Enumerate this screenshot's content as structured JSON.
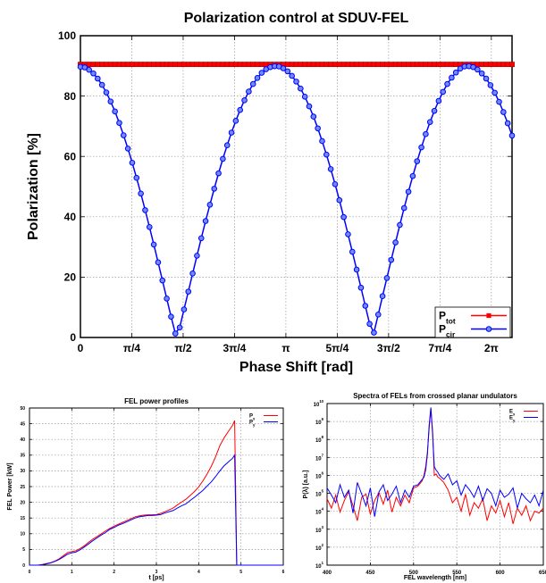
{
  "chart_data": [
    {
      "type": "line",
      "title": "Polarization control at SDUV-FEL",
      "xlabel": "Phase Shift [rad]",
      "ylabel": "Polarization [%]",
      "xlim": [
        0,
        6.6
      ],
      "ylim": [
        0,
        100
      ],
      "grid": true,
      "legend_position": "bottom-right",
      "x_ticks": [
        {
          "value": 0,
          "label": "0"
        },
        {
          "value": 0.7854,
          "label": "π/4"
        },
        {
          "value": 1.5708,
          "label": "π/2"
        },
        {
          "value": 2.3562,
          "label": "3π/4"
        },
        {
          "value": 3.1416,
          "label": "π"
        },
        {
          "value": 3.927,
          "label": "5π/4"
        },
        {
          "value": 4.7124,
          "label": "3π/2"
        },
        {
          "value": 5.4978,
          "label": "7π/4"
        },
        {
          "value": 6.2832,
          "label": "2π"
        }
      ],
      "y_ticks": [
        0,
        20,
        40,
        60,
        80,
        100
      ],
      "x": [
        0.0,
        0.066,
        0.132,
        0.198,
        0.264,
        0.33,
        0.396,
        0.462,
        0.528,
        0.594,
        0.66,
        0.726,
        0.792,
        0.858,
        0.924,
        0.99,
        1.056,
        1.122,
        1.188,
        1.254,
        1.32,
        1.386,
        1.452,
        1.518,
        1.584,
        1.65,
        1.716,
        1.782,
        1.848,
        1.914,
        1.98,
        2.046,
        2.112,
        2.178,
        2.244,
        2.31,
        2.376,
        2.442,
        2.508,
        2.574,
        2.64,
        2.706,
        2.772,
        2.838,
        2.904,
        2.97,
        3.036,
        3.102,
        3.168,
        3.234,
        3.3,
        3.366,
        3.432,
        3.498,
        3.564,
        3.63,
        3.696,
        3.762,
        3.828,
        3.894,
        3.96,
        4.026,
        4.092,
        4.158,
        4.224,
        4.29,
        4.356,
        4.422,
        4.488,
        4.554,
        4.62,
        4.686,
        4.752,
        4.818,
        4.884,
        4.95,
        5.016,
        5.082,
        5.148,
        5.214,
        5.28,
        5.346,
        5.412,
        5.478,
        5.544,
        5.61,
        5.676,
        5.742,
        5.808,
        5.874,
        5.94,
        6.006,
        6.072,
        6.138,
        6.204,
        6.27,
        6.336,
        6.402,
        6.468,
        6.534,
        6.6
      ],
      "series": [
        {
          "name": "P_tot",
          "color": "#ff0000",
          "marker": "square",
          "values": [
            90.5,
            90.5,
            90.5,
            90.5,
            90.5,
            90.5,
            90.5,
            90.5,
            90.5,
            90.5,
            90.5,
            90.5,
            90.5,
            90.5,
            90.5,
            90.5,
            90.5,
            90.5,
            90.5,
            90.5,
            90.5,
            90.5,
            90.5,
            90.5,
            90.5,
            90.5,
            90.5,
            90.5,
            90.5,
            90.5,
            90.5,
            90.5,
            90.5,
            90.5,
            90.5,
            90.5,
            90.5,
            90.5,
            90.5,
            90.5,
            90.5,
            90.5,
            90.5,
            90.5,
            90.5,
            90.5,
            90.5,
            90.5,
            90.5,
            90.5,
            90.5,
            90.5,
            90.5,
            90.5,
            90.5,
            90.5,
            90.5,
            90.5,
            90.5,
            90.5,
            90.5,
            90.5,
            90.5,
            90.5,
            90.5,
            90.5,
            90.5,
            90.5,
            90.5,
            90.5,
            90.5,
            90.5,
            90.5,
            90.5,
            90.5,
            90.5,
            90.5,
            90.5,
            90.5,
            90.5,
            90.5,
            90.5,
            90.5,
            90.5,
            90.5,
            90.5,
            90.5,
            90.5,
            90.5,
            90.5,
            90.5,
            90.5,
            90.5,
            90.5,
            90.5,
            90.5,
            90.5,
            90.5,
            90.5,
            90.5,
            90.5
          ]
        },
        {
          "name": "P_cir",
          "color": "#0000ff",
          "marker": "circle",
          "values": [
            89.7,
            89.5,
            88.7,
            87.5,
            85.8,
            83.7,
            81.2,
            78.2,
            74.9,
            71.1,
            67.0,
            62.6,
            57.9,
            52.9,
            47.7,
            42.2,
            36.6,
            30.8,
            24.9,
            18.9,
            12.9,
            6.9,
            1.3,
            3.3,
            9.3,
            15.2,
            21.2,
            27.1,
            32.9,
            38.6,
            44.0,
            49.3,
            54.4,
            59.2,
            63.7,
            67.9,
            71.8,
            75.4,
            78.6,
            81.5,
            84.0,
            86.0,
            87.7,
            88.9,
            89.6,
            89.9,
            89.8,
            89.2,
            88.2,
            86.7,
            84.8,
            82.5,
            79.8,
            76.6,
            73.2,
            69.3,
            65.1,
            60.6,
            55.8,
            50.8,
            45.5,
            39.9,
            34.2,
            28.4,
            22.5,
            16.5,
            10.5,
            4.5,
            1.6,
            7.6,
            13.7,
            19.7,
            25.7,
            31.5,
            37.3,
            42.9,
            48.3,
            53.5,
            58.4,
            63.0,
            67.4,
            71.4,
            75.1,
            78.4,
            81.4,
            84.0,
            86.1,
            87.8,
            89.1,
            89.8,
            89.9,
            89.6,
            88.8,
            87.5,
            85.8,
            83.6,
            81.1,
            78.1,
            74.7,
            71.0,
            66.9
          ]
        }
      ]
    },
    {
      "type": "line",
      "title": "FEL power profiles",
      "xlabel": "t [ps]",
      "ylabel": "FEL Power [kW]",
      "xlim": [
        0,
        6
      ],
      "ylim": [
        0,
        50
      ],
      "grid": true,
      "legend_position": "top-right",
      "x_ticks": [
        0,
        1,
        2,
        3,
        4,
        5,
        6
      ],
      "y_ticks": [
        0,
        5,
        10,
        15,
        20,
        25,
        30,
        35,
        40,
        45,
        50
      ],
      "x": [
        0.0,
        0.1,
        0.2,
        0.3,
        0.4,
        0.5,
        0.6,
        0.7,
        0.8,
        0.9,
        1.0,
        1.1,
        1.2,
        1.3,
        1.4,
        1.5,
        1.6,
        1.7,
        1.8,
        1.9,
        2.0,
        2.1,
        2.2,
        2.3,
        2.4,
        2.5,
        2.6,
        2.7,
        2.8,
        2.9,
        3.0,
        3.1,
        3.2,
        3.3,
        3.4,
        3.5,
        3.6,
        3.7,
        3.8,
        3.9,
        4.0,
        4.1,
        4.2,
        4.3,
        4.4,
        4.5,
        4.6,
        4.7,
        4.8,
        4.85,
        4.9,
        5.0,
        5.1,
        5.2,
        5.3,
        5.4,
        5.5,
        5.6,
        5.7,
        5.8,
        5.9,
        6.0
      ],
      "series": [
        {
          "name": "P_x",
          "color": "#ff0000",
          "values": [
            0,
            0,
            0,
            0.2,
            0.5,
            0.8,
            1.3,
            2.0,
            3.0,
            4.0,
            4.3,
            4.6,
            5.3,
            6.2,
            7.3,
            8.3,
            9.1,
            10.0,
            10.9,
            11.7,
            12.4,
            13.0,
            13.6,
            14.2,
            14.8,
            15.4,
            15.7,
            15.9,
            16.0,
            16.0,
            16.1,
            16.5,
            17.0,
            17.6,
            18.2,
            19.2,
            20.1,
            21.0,
            22.2,
            23.4,
            24.9,
            26.8,
            29.0,
            31.5,
            34.5,
            38.0,
            40.5,
            42.5,
            44.5,
            46.0,
            0,
            0,
            0,
            0,
            0,
            0,
            0,
            0,
            0,
            0,
            0,
            0
          ]
        },
        {
          "name": "P_y",
          "color": "#0000ff",
          "values": [
            0,
            0,
            0,
            0.1,
            0.4,
            0.7,
            1.2,
            1.8,
            2.6,
            3.5,
            3.9,
            4.2,
            4.9,
            5.8,
            6.8,
            7.8,
            8.7,
            9.6,
            10.4,
            11.4,
            12.0,
            12.7,
            13.2,
            13.8,
            14.4,
            15.0,
            15.4,
            15.6,
            15.8,
            15.8,
            15.9,
            16.1,
            16.6,
            17.0,
            17.4,
            18.2,
            18.9,
            19.5,
            20.6,
            21.6,
            22.7,
            23.8,
            25.2,
            26.5,
            28.2,
            30.0,
            31.6,
            32.8,
            34.0,
            35.0,
            0,
            0,
            0,
            0,
            0,
            0,
            0,
            0,
            0,
            0,
            0,
            0
          ]
        }
      ]
    },
    {
      "type": "line",
      "title": "Spectra of FELs from crossed planar undulators",
      "xlabel": "FEL wavelength [nm]",
      "ylabel": "P(λ) [a.u.]",
      "xlim": [
        400,
        650
      ],
      "ylim": [
        10,
        10000000000
      ],
      "log_y": true,
      "grid": true,
      "legend_position": "top-right",
      "x_ticks": [
        400,
        450,
        500,
        550,
        600,
        650
      ],
      "y_tick_exponents": [
        1,
        2,
        3,
        4,
        5,
        6,
        7,
        8,
        9,
        10
      ],
      "x": [
        400,
        405,
        410,
        415,
        420,
        425,
        430,
        435,
        440,
        445,
        450,
        455,
        460,
        465,
        470,
        475,
        480,
        485,
        490,
        495,
        500,
        505,
        510,
        512,
        514,
        516,
        518,
        520,
        522,
        524,
        526,
        528,
        530,
        535,
        540,
        545,
        550,
        555,
        560,
        565,
        570,
        575,
        580,
        585,
        590,
        595,
        600,
        605,
        610,
        615,
        620,
        625,
        630,
        635,
        640,
        645,
        650
      ],
      "series": [
        {
          "name": "E_x",
          "color": "#ff0000",
          "values": [
            50000,
            15000,
            80000,
            9000,
            40000,
            120000,
            20000,
            3000,
            60000,
            90000,
            7000,
            40000,
            110000,
            25000,
            150000,
            9000,
            60000,
            20000,
            80000,
            30000,
            200000,
            250000,
            500000,
            1000000,
            3000000,
            20000000,
            400000000,
            5000000000,
            300000000,
            1000000,
            1200000,
            800000,
            700000,
            400000,
            150000,
            30000,
            60000,
            10000,
            90000,
            6000,
            30000,
            15000,
            50000,
            3000,
            20000,
            8000,
            40000,
            5000,
            30000,
            2000,
            15000,
            6000,
            20000,
            3000,
            10000,
            8000,
            15000
          ]
        },
        {
          "name": "E_y",
          "color": "#0000ff",
          "values": [
            200000,
            80000,
            30000,
            300000,
            60000,
            150000,
            8000,
            400000,
            90000,
            20000,
            200000,
            5000,
            120000,
            300000,
            40000,
            90000,
            250000,
            30000,
            150000,
            60000,
            250000,
            300000,
            600000,
            800000,
            2000000,
            15000000,
            600000000,
            6000000000,
            200000000,
            3000000,
            2000000,
            1500000,
            1000000,
            600000,
            1200000,
            300000,
            500000,
            80000,
            300000,
            150000,
            60000,
            250000,
            40000,
            180000,
            100000,
            20000,
            150000,
            60000,
            90000,
            200000,
            15000,
            100000,
            50000,
            30000,
            80000,
            20000,
            150000
          ]
        }
      ]
    }
  ]
}
